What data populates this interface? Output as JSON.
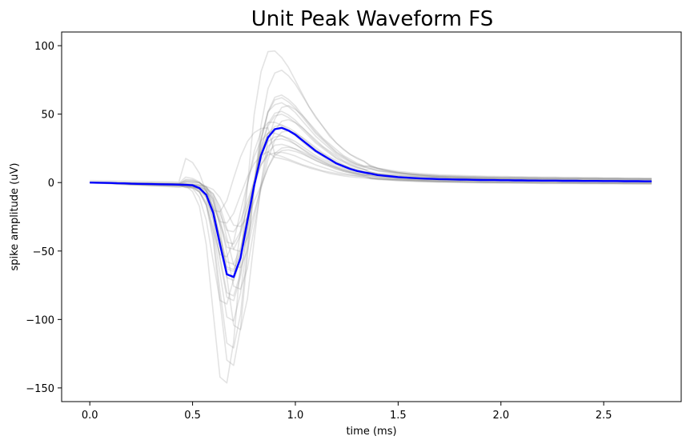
{
  "chart_data": {
    "type": "line",
    "title": "Unit Peak Waveform FS",
    "xlabel": "time (ms)",
    "ylabel": "spike amplitude (uV)",
    "xlim": [
      -0.137,
      2.877
    ],
    "ylim": [
      -160,
      110
    ],
    "xticks": [
      0.0,
      0.5,
      1.0,
      1.5,
      2.0,
      2.5
    ],
    "xtick_labels": [
      "0.0",
      "0.5",
      "1.0",
      "1.5",
      "2.0",
      "2.5"
    ],
    "yticks": [
      -150,
      -100,
      -50,
      0,
      50,
      100
    ],
    "ytick_labels": [
      "−150",
      "−100",
      "−50",
      "0",
      "50",
      "100"
    ],
    "grid": false,
    "legend": "none",
    "x": [
      0.0,
      0.0333,
      0.0667,
      0.1,
      0.1333,
      0.1667,
      0.2,
      0.2333,
      0.2667,
      0.3,
      0.3333,
      0.3667,
      0.4,
      0.4333,
      0.4667,
      0.5,
      0.5333,
      0.5667,
      0.6,
      0.6333,
      0.6667,
      0.7,
      0.7333,
      0.7667,
      0.8,
      0.8333,
      0.8667,
      0.9,
      0.9333,
      0.9667,
      1.0,
      1.0333,
      1.0667,
      1.1,
      1.1333,
      1.1667,
      1.2,
      1.2333,
      1.2667,
      1.3,
      1.3333,
      1.3667,
      1.4,
      1.4333,
      1.4667,
      1.5,
      1.5333,
      1.5667,
      1.6,
      1.6333,
      1.6667,
      1.7,
      1.7333,
      1.7667,
      1.8,
      1.8333,
      1.8667,
      1.9,
      1.9333,
      1.9667,
      2.0,
      2.0333,
      2.0667,
      2.1,
      2.1333,
      2.1667,
      2.2,
      2.2333,
      2.2667,
      2.3,
      2.3333,
      2.3667,
      2.4,
      2.4333,
      2.4667,
      2.5,
      2.5333,
      2.5667,
      2.6,
      2.6333,
      2.6667,
      2.7,
      2.7333
    ],
    "series": [
      {
        "role": "mean",
        "color": "#0000ff",
        "values": [
          0,
          -0.1,
          -0.2,
          -0.3,
          -0.5,
          -0.6,
          -0.8,
          -0.9,
          -1,
          -1.1,
          -1.2,
          -1.3,
          -1.4,
          -1.5,
          -1.7,
          -2,
          -4,
          -9,
          -22,
          -45,
          -67,
          -69,
          -55,
          -28,
          -2,
          20,
          33,
          39,
          40,
          38,
          35,
          31,
          27,
          23,
          20,
          17,
          14,
          12,
          10,
          8.5,
          7.5,
          6.5,
          5.5,
          5,
          4.5,
          4,
          3.7,
          3.4,
          3.1,
          2.9,
          2.7,
          2.5,
          2.4,
          2.3,
          2.2,
          2.1,
          2,
          1.9,
          1.8,
          1.8,
          1.7,
          1.7,
          1.6,
          1.6,
          1.5,
          1.5,
          1.4,
          1.4,
          1.4,
          1.3,
          1.3,
          1.3,
          1.2,
          1.2,
          1.2,
          1.1,
          1.1,
          1.1,
          1,
          1,
          1,
          0.9,
          0.9
        ]
      }
    ],
    "unit_waveforms": {
      "color": "#808080",
      "opacity": 0.22,
      "base_shape": [
        0,
        -0.1,
        -0.2,
        -0.3,
        -0.5,
        -0.6,
        -0.8,
        -0.9,
        -1,
        -1.1,
        -1.2,
        -1.3,
        -1.4,
        -1.5,
        -1.7,
        -2,
        -4,
        -9,
        -22,
        -45,
        -67,
        -69,
        -55,
        -28,
        -2,
        20,
        33,
        39,
        40,
        38,
        35,
        31,
        27,
        23,
        20,
        17,
        14,
        12,
        10,
        8.5,
        7.5,
        6.5,
        5.5,
        5,
        4.5,
        4,
        3.7,
        3.4,
        3.1,
        2.9,
        2.7,
        2.5,
        2.4,
        2.3,
        2.2,
        2.1,
        2,
        1.9,
        1.8,
        1.8,
        1.7,
        1.7,
        1.6,
        1.6,
        1.5,
        1.5,
        1.4,
        1.4,
        1.4,
        1.3,
        1.3,
        1.3,
        1.2,
        1.2,
        1.2,
        1.1,
        1.1,
        1.1,
        1,
        1,
        1,
        0.9,
        0.9
      ],
      "units": [
        {
          "trough_scale": 2.15,
          "peak_scale": 2.4,
          "shift": -1,
          "offset": 2
        },
        {
          "trough_scale": 1.95,
          "peak_scale": 2.05,
          "shift": 0,
          "offset": 1
        },
        {
          "trough_scale": 1.75,
          "peak_scale": 1.55,
          "shift": 0,
          "offset": 0
        },
        {
          "trough_scale": 1.6,
          "peak_scale": 1.4,
          "shift": 1,
          "offset": 3
        },
        {
          "trough_scale": 1.45,
          "peak_scale": 1.6,
          "shift": 0,
          "offset": -1
        },
        {
          "trough_scale": 1.3,
          "peak_scale": 1.1,
          "shift": -1,
          "offset": 1
        },
        {
          "trough_scale": 1.2,
          "peak_scale": 1.3,
          "shift": 0,
          "offset": 0
        },
        {
          "trough_scale": 1.1,
          "peak_scale": 0.95,
          "shift": 1,
          "offset": -2
        },
        {
          "trough_scale": 1.0,
          "peak_scale": 1.45,
          "shift": 0,
          "offset": 4
        },
        {
          "trough_scale": 0.95,
          "peak_scale": 0.85,
          "shift": 0,
          "offset": 2
        },
        {
          "trough_scale": 0.9,
          "peak_scale": 1.15,
          "shift": 1,
          "offset": 0
        },
        {
          "trough_scale": 0.85,
          "peak_scale": 0.7,
          "shift": 0,
          "offset": -1
        },
        {
          "trough_scale": 0.8,
          "peak_scale": 0.9,
          "shift": -1,
          "offset": 1
        },
        {
          "trough_scale": 0.75,
          "peak_scale": 1.0,
          "shift": 0,
          "offset": 3
        },
        {
          "trough_scale": 0.7,
          "peak_scale": 0.65,
          "shift": 1,
          "offset": -2
        },
        {
          "trough_scale": 0.65,
          "peak_scale": 0.8,
          "shift": 0,
          "offset": 0
        },
        {
          "trough_scale": 0.55,
          "peak_scale": 0.55,
          "shift": 0,
          "offset": 2
        },
        {
          "trough_scale": 0.5,
          "peak_scale": 0.45,
          "shift": -1,
          "offset": 5
        },
        {
          "trough_scale": 0.45,
          "peak_scale": 0.6,
          "shift": 1,
          "offset": -1
        },
        {
          "trough_scale": 1.25,
          "peak_scale": 1.25,
          "shift": 0,
          "offset": 0
        },
        {
          "trough_scale": 1.05,
          "peak_scale": 1.05,
          "shift": 0,
          "offset": 1
        },
        {
          "trough_scale": 0.6,
          "peak_scale": 0.5,
          "shift": -2,
          "offset": 20
        }
      ]
    }
  }
}
